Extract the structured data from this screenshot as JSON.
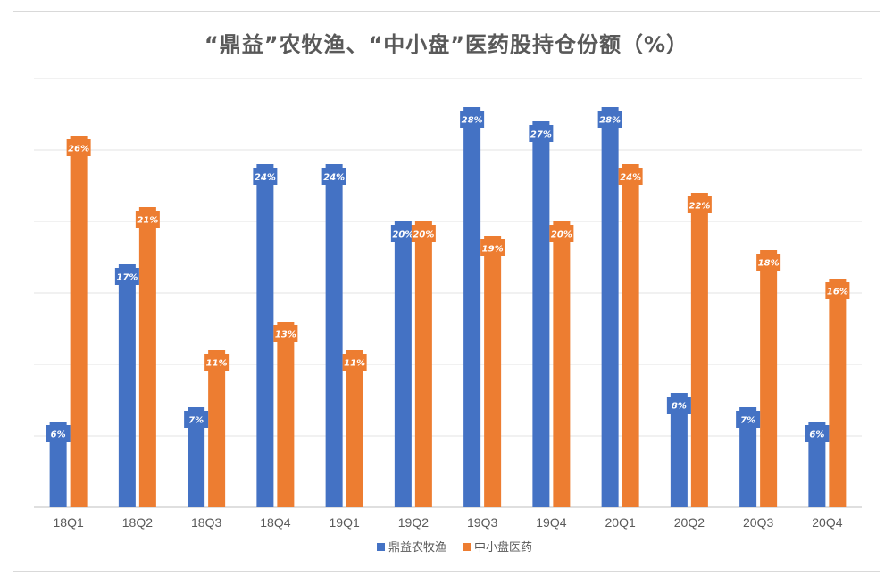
{
  "chart_data": {
    "type": "bar",
    "title": "“鼎益”农牧渔、“中小盘”医药股持仓份额（%）",
    "categories": [
      "18Q1",
      "18Q2",
      "18Q3",
      "18Q4",
      "19Q1",
      "19Q2",
      "19Q3",
      "19Q4",
      "20Q1",
      "20Q2",
      "20Q3",
      "20Q4"
    ],
    "series": [
      {
        "name": "鼎益农牧渔",
        "color": "#4472c4",
        "values": [
          6,
          17,
          7,
          24,
          24,
          20,
          28,
          27,
          28,
          8,
          7,
          6
        ]
      },
      {
        "name": "中小盘医药",
        "color": "#ed7d31",
        "values": [
          26,
          21,
          11,
          13,
          11,
          20,
          19,
          20,
          24,
          22,
          18,
          16
        ]
      }
    ],
    "label_suffix": "%",
    "ylim": [
      0,
      30
    ],
    "grid": true,
    "legend": "bottom"
  }
}
